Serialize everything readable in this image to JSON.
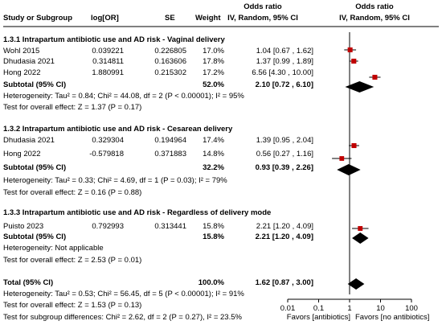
{
  "header": {
    "col_study": "Study or Subgroup",
    "col_logor": "log[OR]",
    "col_se": "SE",
    "col_weight": "Weight",
    "col_or_title": "Odds ratio",
    "col_or_sub": "IV, Random, 95% CI",
    "col_plot_title": "Odds ratio",
    "col_plot_sub": "IV, Random, 95% CI"
  },
  "colors": {
    "line": "#000000",
    "study_marker": "#c00000",
    "diamond": "#000000"
  },
  "chart_data": {
    "type": "forest",
    "x_scale": "log",
    "xlim": [
      0.01,
      100
    ],
    "null_value": 1,
    "x_ticks": [
      {
        "value": 0.01,
        "label": "0.01"
      },
      {
        "value": 0.1,
        "label": "0.1"
      },
      {
        "value": 1,
        "label": "1"
      },
      {
        "value": 10,
        "label": "10"
      },
      {
        "value": 100,
        "label": "100"
      }
    ],
    "favors_left": "Favors [antibiotics]",
    "favors_right": "Favors [no antibiotics]",
    "subgroups": [
      {
        "title": "1.3.1 Intrapartum antibiotic use and AD risk - Vaginal delivery",
        "studies": [
          {
            "study": "Wohl 2015",
            "logor": "0.039221",
            "se": "0.226805",
            "weight": "17.0%",
            "ci_text": "1.04 [0.67 , 1.62]",
            "or": 1.04,
            "lo": 0.67,
            "hi": 1.62,
            "w": 17.0
          },
          {
            "study": "Dhudasia 2021",
            "logor": "0.314811",
            "se": "0.163606",
            "weight": "17.8%",
            "ci_text": "1.37 [0.99 , 1.89]",
            "or": 1.37,
            "lo": 0.99,
            "hi": 1.89,
            "w": 17.8
          },
          {
            "study": "Hong 2022",
            "logor": "1.880991",
            "se": "0.215302",
            "weight": "17.2%",
            "ci_text": "6.56 [4.30 , 10.00]",
            "or": 6.56,
            "lo": 4.3,
            "hi": 10.0,
            "w": 17.2
          }
        ],
        "subtotal": {
          "label": "Subtotal (95% CI)",
          "weight": "52.0%",
          "ci_text": "2.10 [0.72 , 6.10]",
          "or": 2.1,
          "lo": 0.72,
          "hi": 6.1
        },
        "heterogeneity": "Heterogeneity: Tau² = 0.84; Chi² = 44.08, df = 2 (P < 0.00001); I² = 95%",
        "overall_effect": "Test for overall effect: Z = 1.37 (P = 0.17)"
      },
      {
        "title": "1.3.2 Intrapartum antibiotic use and AD risk - Cesarean delivery",
        "studies": [
          {
            "study": "Dhudasia 2021",
            "logor": "0.329304",
            "se": "0.194964",
            "weight": "17.4%",
            "ci_text": "1.39 [0.95 , 2.04]",
            "or": 1.39,
            "lo": 0.95,
            "hi": 2.04,
            "w": 17.4
          },
          {
            "study": "Hong 2022",
            "logor": "-0.579818",
            "se": "0.371883",
            "weight": "14.8%",
            "ci_text": "0.56 [0.27 , 1.16]",
            "or": 0.56,
            "lo": 0.27,
            "hi": 1.16,
            "w": 14.8
          }
        ],
        "subtotal": {
          "label": "Subtotal (95% CI)",
          "weight": "32.2%",
          "ci_text": "0.93 [0.39 , 2.26]",
          "or": 0.93,
          "lo": 0.39,
          "hi": 2.26
        },
        "heterogeneity": "Heterogeneity: Tau² = 0.33; Chi² = 4.69, df = 1 (P = 0.03); I² = 79%",
        "overall_effect": "Test for overall effect: Z = 0.16 (P = 0.88)"
      },
      {
        "title": "1.3.3 Intrapartum antibiotic use and AD risk - Regardless of delivery mode",
        "studies": [
          {
            "study": "Puisto 2023",
            "logor": "0.792993",
            "se": "0.313441",
            "weight": "15.8%",
            "ci_text": "2.21 [1.20 , 4.09]",
            "or": 2.21,
            "lo": 1.2,
            "hi": 4.09,
            "w": 15.8
          }
        ],
        "subtotal": {
          "label": "Subtotal (95% CI)",
          "weight": "15.8%",
          "ci_text": "2.21 [1.20 , 4.09]",
          "or": 2.21,
          "lo": 1.2,
          "hi": 4.09
        },
        "heterogeneity": "Heterogeneity: Not applicable",
        "overall_effect": "Test for overall effect: Z = 2.53 (P = 0.01)"
      }
    ],
    "total": {
      "label": "Total (95% CI)",
      "weight": "100.0%",
      "ci_text": "1.62 [0.87 , 3.00]",
      "or": 1.62,
      "lo": 0.87,
      "hi": 3.0,
      "heterogeneity": "Heterogeneity: Tau² = 0.53; Chi² = 56.45, df = 5 (P < 0.00001); I² = 91%",
      "overall_effect": "Test for overall effect: Z = 1.53 (P = 0.13)",
      "subgroup_diff": "Test for subgroup differences: Chi² = 2.62, df = 2 (P = 0.27), I² = 23.5%"
    }
  }
}
